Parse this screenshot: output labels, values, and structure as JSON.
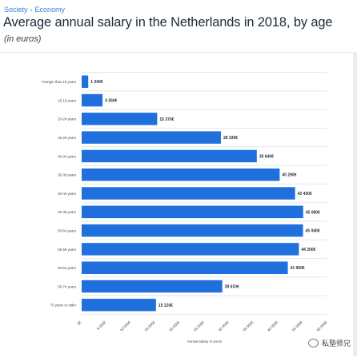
{
  "breadcrumb": {
    "items": [
      "Society",
      "Economy"
    ],
    "separator": "›"
  },
  "title": "Average annual salary in the Netherlands in 2018, by age",
  "subtitle": "(in euros)",
  "watermark": {
    "text": "私塾师兄"
  },
  "colors": {
    "bar": "#1f6fdc",
    "grid": "#e3e7eb",
    "title": "#1b2a38",
    "link": "#3a7bd5"
  },
  "chart_data": {
    "type": "bar",
    "orientation": "horizontal",
    "categories": [
      "Younger than 15 years",
      "15-19 years",
      "20-24 years",
      "25-29 years",
      "30-34 years",
      "35-39 years",
      "40-44 years",
      "45-49 years",
      "50-54 years",
      "55-59 years",
      "60-64 years",
      "65-74 years",
      "75 years or older"
    ],
    "values": [
      1340,
      4260,
      15370,
      28330,
      35640,
      40290,
      43430,
      45080,
      45040,
      44200,
      41950,
      28610,
      15120
    ],
    "data_labels": [
      "1 340€",
      "4 260€",
      "15 370€",
      "28 330€",
      "35 640€",
      "40 290€",
      "43 430€",
      "45 080€",
      "45 040€",
      "44 200€",
      "41 950€",
      "28 610€",
      "15 120€"
    ],
    "x_ticks": [
      0,
      5000,
      10000,
      15000,
      20000,
      25000,
      30000,
      35000,
      40000,
      45000,
      50000
    ],
    "x_tick_labels": [
      "0€",
      "5 000€",
      "10 000€",
      "15 000€",
      "20 000€",
      "25 000€",
      "30 000€",
      "35 000€",
      "40 000€",
      "45 000€",
      "50 000€"
    ],
    "xlim": [
      0,
      50000
    ],
    "xlabel": "Annual salary in euros",
    "grid": true
  }
}
